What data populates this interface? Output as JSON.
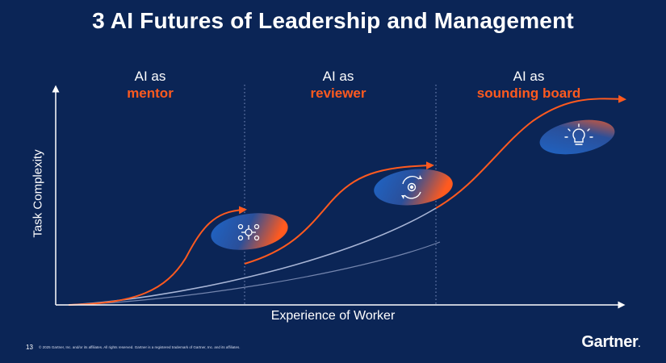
{
  "title": "3 AI Futures of Leadership and Management",
  "phases": [
    {
      "prefix": "AI as",
      "name": "mentor",
      "icon": "network-gear-icon"
    },
    {
      "prefix": "AI as",
      "name": "reviewer",
      "icon": "gear-cycle-icon"
    },
    {
      "prefix": "AI as",
      "name": "sounding board",
      "icon": "lightbulb-icon"
    }
  ],
  "axes": {
    "y_label": "Task Complexity",
    "x_label": "Experience of Worker"
  },
  "footer": {
    "page_number": "13",
    "copyright": "© 2025 Gartner, Inc. and/or its affiliates. All rights reserved. Gartner is a registered trademark of Gartner, Inc. and its affiliates.",
    "logo": "Gartner",
    "logo_mark": "."
  },
  "colors": {
    "background": "#0b2556",
    "accent": "#ff5a1f",
    "text": "#ffffff",
    "baseline_curve": "#a8b5d6"
  }
}
